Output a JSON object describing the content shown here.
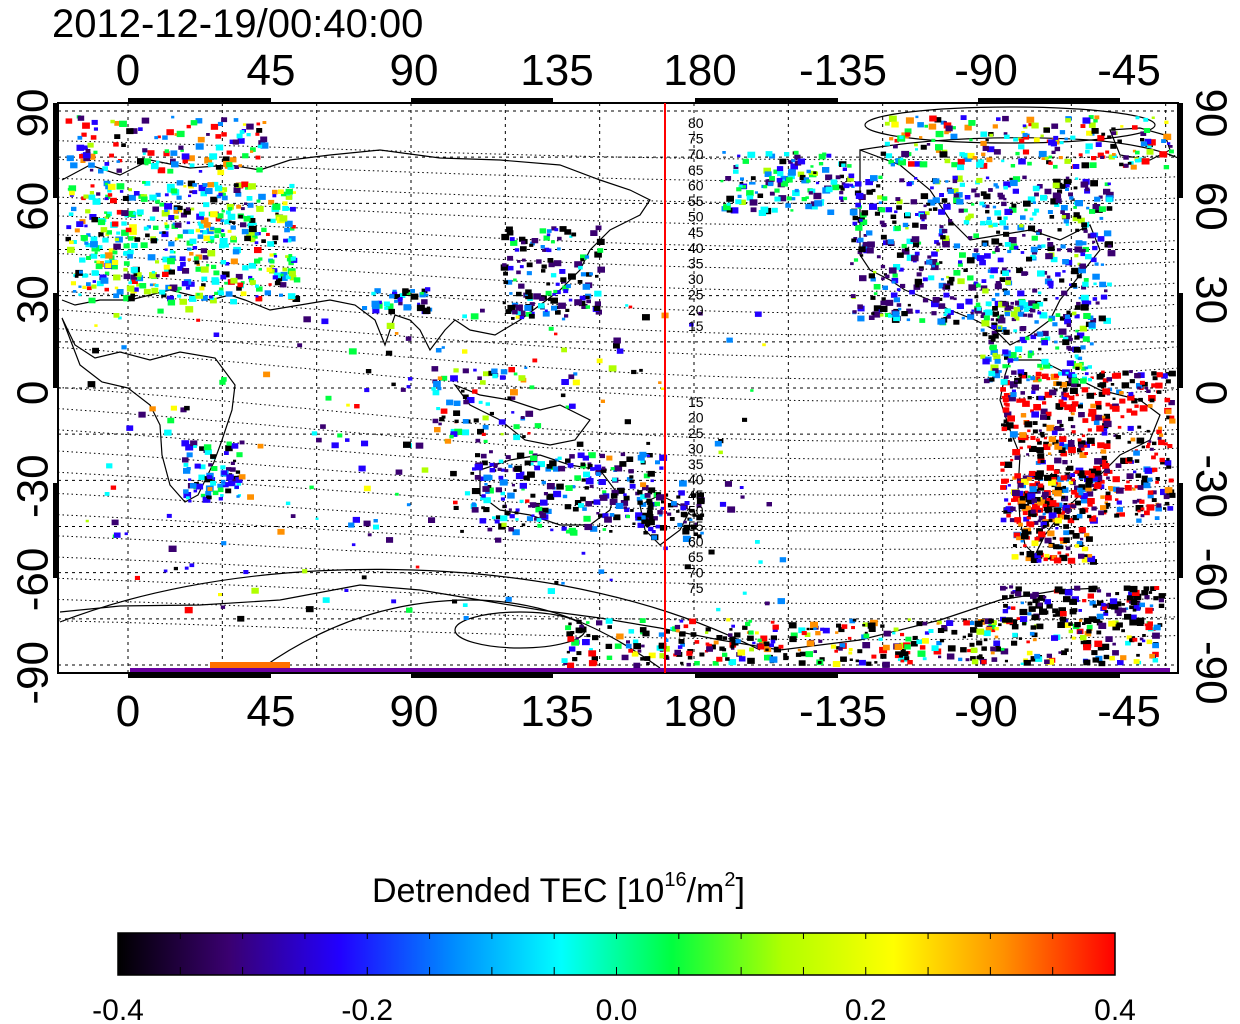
{
  "timestamp": "2012-12-19/00:40:00",
  "map": {
    "top_lon_labels": [
      "0",
      "45",
      "90",
      "135",
      "180",
      "-135",
      "-90",
      "-45"
    ],
    "bottom_lon_labels": [
      "0",
      "45",
      "90",
      "135",
      "180",
      "-135",
      "-90",
      "-45"
    ],
    "lat_labels": [
      "90",
      "60",
      "30",
      "0",
      "-30",
      "-60",
      "-90"
    ],
    "contour_labels_north": [
      "80",
      "75",
      "70",
      "65",
      "60",
      "55",
      "50",
      "45",
      "40",
      "35",
      "30",
      "25",
      "20",
      "15"
    ],
    "contour_labels_south": [
      "15",
      "20",
      "25",
      "30",
      "35",
      "40",
      "45",
      "50",
      "55",
      "60",
      "65",
      "70",
      "75"
    ],
    "terminator_color": "#ff0000"
  },
  "colorbar": {
    "title_prefix": "Detrended TEC  [10",
    "title_sup1": "16",
    "title_mid": "/m",
    "title_sup2": "2",
    "title_suffix": "]",
    "tick_labels": [
      "-0.4",
      "-0.2",
      "0.0",
      "0.2",
      "0.4"
    ],
    "min": -0.4,
    "max": 0.4,
    "colors": [
      "#000000",
      "#3a0070",
      "#2200ff",
      "#0088ff",
      "#00ffff",
      "#00ff40",
      "#b0ff00",
      "#ffff00",
      "#ff9000",
      "#ff0000"
    ]
  }
}
